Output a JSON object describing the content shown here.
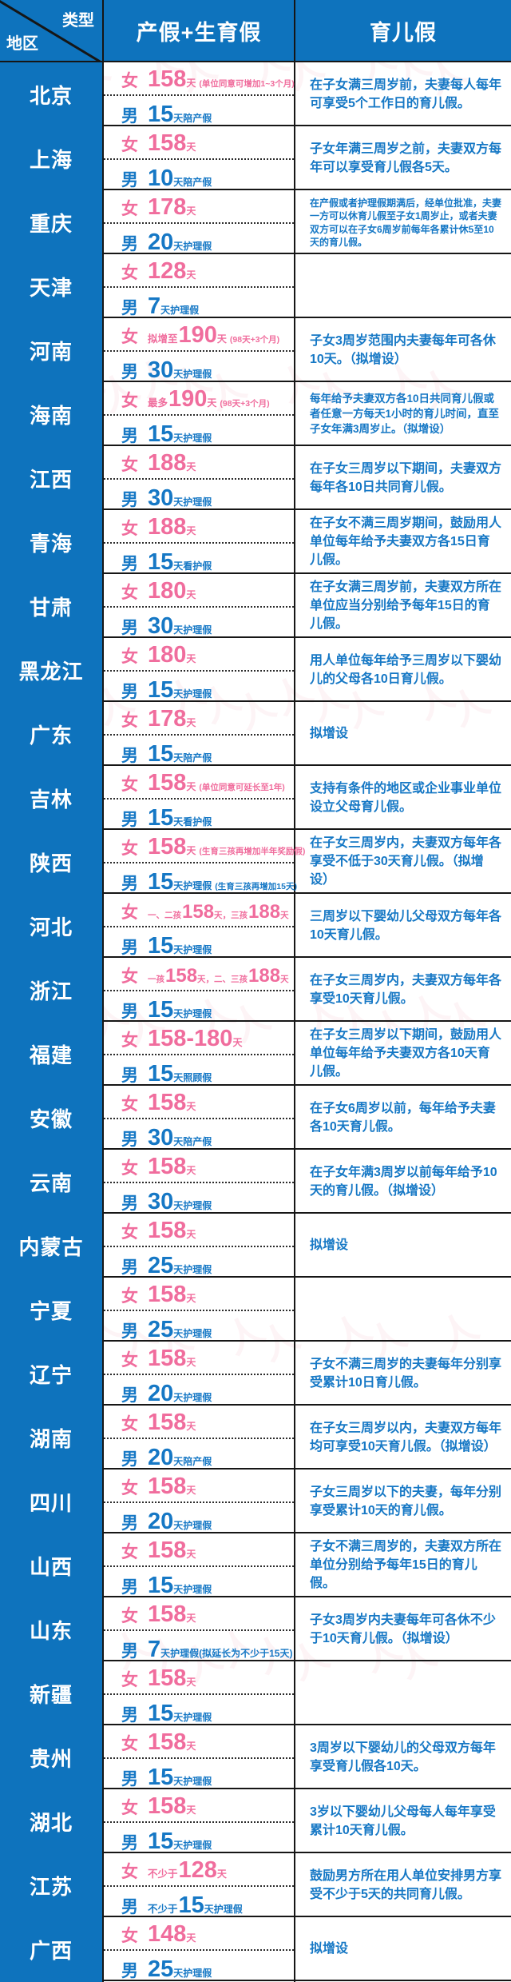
{
  "header": {
    "corner_top": "类型",
    "corner_bottom": "地区",
    "col_maternity": "产假+生育假",
    "col_childcare": "育儿假"
  },
  "colors": {
    "header_blue": "#0e73bd",
    "female_pink": "#f06d9d",
    "male_blue": "#1678c5",
    "border_black": "#161616"
  },
  "watermark": {
    "glyph": "人"
  },
  "rows": [
    {
      "region": "北京",
      "female": {
        "label": "女",
        "parts": [
          [
            "big",
            "158"
          ],
          [
            "sm",
            "天"
          ],
          [
            "note",
            "(单位同意可增加1~3个月)"
          ]
        ]
      },
      "male": {
        "label": "男",
        "parts": [
          [
            "big",
            "15"
          ],
          [
            "sm",
            "天陪产假"
          ]
        ]
      },
      "care": "在子女满三周岁前，夫妻每人每年可享受5个工作日的育儿假。"
    },
    {
      "region": "上海",
      "female": {
        "label": "女",
        "parts": [
          [
            "big",
            "158"
          ],
          [
            "sm",
            "天"
          ]
        ]
      },
      "male": {
        "label": "男",
        "parts": [
          [
            "big",
            "10"
          ],
          [
            "sm",
            "天陪产假"
          ]
        ]
      },
      "care": "子女年满三周岁之前，夫妻双方每年可以享受育儿假各5天。"
    },
    {
      "region": "重庆",
      "female": {
        "label": "女",
        "parts": [
          [
            "big",
            "178"
          ],
          [
            "sm",
            "天"
          ]
        ]
      },
      "male": {
        "label": "男",
        "parts": [
          [
            "big",
            "20"
          ],
          [
            "sm",
            "天护理假"
          ]
        ]
      },
      "care": "在产假或者护理假期满后，经单位批准，夫妻一方可以休育儿假至子女1周岁止，或者夫妻双方可以在子女6周岁前每年各累计休5至10天的育儿假。"
    },
    {
      "region": "天津",
      "female": {
        "label": "女",
        "parts": [
          [
            "big",
            "128"
          ],
          [
            "sm",
            "天"
          ]
        ]
      },
      "male": {
        "label": "男",
        "parts": [
          [
            "big",
            "7"
          ],
          [
            "sm",
            "天护理假"
          ]
        ]
      },
      "care": ""
    },
    {
      "region": "河南",
      "female": {
        "label": "女",
        "parts": [
          [
            "pre",
            "拟增至"
          ],
          [
            "big",
            "190"
          ],
          [
            "sm",
            "天"
          ],
          [
            "note",
            "(98天+3个月)"
          ]
        ]
      },
      "male": {
        "label": "男",
        "parts": [
          [
            "big",
            "30"
          ],
          [
            "sm",
            "天护理假"
          ]
        ]
      },
      "care": "子女3周岁范围内夫妻每年可各休10天。（拟增设）"
    },
    {
      "region": "海南",
      "female": {
        "label": "女",
        "parts": [
          [
            "pre",
            "最多"
          ],
          [
            "big",
            "190"
          ],
          [
            "sm",
            "天"
          ],
          [
            "note",
            "(98天+3个月)"
          ]
        ]
      },
      "male": {
        "label": "男",
        "parts": [
          [
            "big",
            "15"
          ],
          [
            "sm",
            "天护理假"
          ]
        ]
      },
      "care": "每年给予夫妻双方各10日共同育儿假或者任意一方每天1小时的育儿时间，直至子女年满3周岁止。（拟增设）"
    },
    {
      "region": "江西",
      "female": {
        "label": "女",
        "parts": [
          [
            "big",
            "188"
          ],
          [
            "sm",
            "天"
          ]
        ]
      },
      "male": {
        "label": "男",
        "parts": [
          [
            "big",
            "30"
          ],
          [
            "sm",
            "天护理假"
          ]
        ]
      },
      "care": "在子女三周岁以下期间，夫妻双方每年各10日共同育儿假。"
    },
    {
      "region": "青海",
      "female": {
        "label": "女",
        "parts": [
          [
            "big",
            "188"
          ],
          [
            "sm",
            "天"
          ]
        ]
      },
      "male": {
        "label": "男",
        "parts": [
          [
            "big",
            "15"
          ],
          [
            "sm",
            "天看护假"
          ]
        ]
      },
      "care": "在子女不满三周岁期间，鼓励用人单位每年给予夫妻双方各15日育儿假。"
    },
    {
      "region": "甘肃",
      "female": {
        "label": "女",
        "parts": [
          [
            "big",
            "180"
          ],
          [
            "sm",
            "天"
          ]
        ]
      },
      "male": {
        "label": "男",
        "parts": [
          [
            "big",
            "30"
          ],
          [
            "sm",
            "天护理假"
          ]
        ]
      },
      "care": "在子女满三周岁前，夫妻双方所在单位应当分别给予每年15日的育儿假。"
    },
    {
      "region": "黑龙江",
      "female": {
        "label": "女",
        "parts": [
          [
            "big",
            "180"
          ],
          [
            "sm",
            "天"
          ]
        ]
      },
      "male": {
        "label": "男",
        "parts": [
          [
            "big",
            "15"
          ],
          [
            "sm",
            "天护理假"
          ]
        ]
      },
      "care": "用人单位每年给予三周岁以下婴幼儿的父母各10日育儿假。"
    },
    {
      "region": "广东",
      "female": {
        "label": "女",
        "parts": [
          [
            "big",
            "178"
          ],
          [
            "sm",
            "天"
          ]
        ]
      },
      "male": {
        "label": "男",
        "parts": [
          [
            "big",
            "15"
          ],
          [
            "sm",
            "天陪产假"
          ]
        ]
      },
      "care": "拟增设"
    },
    {
      "region": "吉林",
      "female": {
        "label": "女",
        "parts": [
          [
            "big",
            "158"
          ],
          [
            "sm",
            "天"
          ],
          [
            "note",
            "(单位同意可延长至1年)"
          ]
        ]
      },
      "male": {
        "label": "男",
        "parts": [
          [
            "big",
            "15"
          ],
          [
            "sm",
            "天看护假"
          ]
        ]
      },
      "care": "支持有条件的地区或企业事业单位设立父母育儿假。"
    },
    {
      "region": "陕西",
      "female": {
        "label": "女",
        "parts": [
          [
            "big",
            "158"
          ],
          [
            "sm",
            "天"
          ],
          [
            "note",
            "(生育三孩再增加半年奖励假)"
          ]
        ]
      },
      "male": {
        "label": "男",
        "parts": [
          [
            "big",
            "15"
          ],
          [
            "sm",
            "天护理假"
          ],
          [
            "note",
            "(生育三孩再增加15天)"
          ]
        ]
      },
      "care": "在子女三周岁内，夫妻双方每年各享受不低于30天育儿假。（拟增设）"
    },
    {
      "region": "河北",
      "female": {
        "label": "女",
        "parts": [
          [
            "pre",
            "一、二孩"
          ],
          [
            "big",
            "158"
          ],
          [
            "sm",
            "天，"
          ],
          [
            "pre",
            "三孩"
          ],
          [
            "big",
            "188"
          ],
          [
            "sm",
            "天"
          ]
        ]
      },
      "male": {
        "label": "男",
        "parts": [
          [
            "big",
            "15"
          ],
          [
            "sm",
            "天护理假"
          ]
        ]
      },
      "care": "三周岁以下婴幼儿父母双方每年各10天育儿假。"
    },
    {
      "region": "浙江",
      "female": {
        "label": "女",
        "parts": [
          [
            "pre",
            "一孩"
          ],
          [
            "big",
            "158"
          ],
          [
            "sm",
            "天，"
          ],
          [
            "pre",
            "二、三孩"
          ],
          [
            "big",
            "188"
          ],
          [
            "sm",
            "天"
          ]
        ]
      },
      "male": {
        "label": "男",
        "parts": [
          [
            "big",
            "15"
          ],
          [
            "sm",
            "天护理假"
          ]
        ]
      },
      "care": "在子女三周岁内，夫妻双方每年各享受10天育儿假。"
    },
    {
      "region": "福建",
      "female": {
        "label": "女",
        "parts": [
          [
            "big",
            "158-180"
          ],
          [
            "sm",
            "天"
          ]
        ]
      },
      "male": {
        "label": "男",
        "parts": [
          [
            "big",
            "15"
          ],
          [
            "sm",
            "天照顾假"
          ]
        ]
      },
      "care": "在子女三周岁以下期间，鼓励用人单位每年给予夫妻双方各10天育儿假。"
    },
    {
      "region": "安徽",
      "female": {
        "label": "女",
        "parts": [
          [
            "big",
            "158"
          ],
          [
            "sm",
            "天"
          ]
        ]
      },
      "male": {
        "label": "男",
        "parts": [
          [
            "big",
            "30"
          ],
          [
            "sm",
            "天陪产假"
          ]
        ]
      },
      "care": "在子女6周岁以前，每年给予夫妻各10天育儿假。"
    },
    {
      "region": "云南",
      "female": {
        "label": "女",
        "parts": [
          [
            "big",
            "158"
          ],
          [
            "sm",
            "天"
          ]
        ]
      },
      "male": {
        "label": "男",
        "parts": [
          [
            "big",
            "30"
          ],
          [
            "sm",
            "天护理假"
          ]
        ]
      },
      "care": "在子女年满3周岁以前每年给予10天的育儿假。（拟增设）"
    },
    {
      "region": "内蒙古",
      "female": {
        "label": "女",
        "parts": [
          [
            "big",
            "158"
          ],
          [
            "sm",
            "天"
          ]
        ]
      },
      "male": {
        "label": "男",
        "parts": [
          [
            "big",
            "25"
          ],
          [
            "sm",
            "天护理假"
          ]
        ]
      },
      "care": "拟增设"
    },
    {
      "region": "宁夏",
      "female": {
        "label": "女",
        "parts": [
          [
            "big",
            "158"
          ],
          [
            "sm",
            "天"
          ]
        ]
      },
      "male": {
        "label": "男",
        "parts": [
          [
            "big",
            "25"
          ],
          [
            "sm",
            "天护理假"
          ]
        ]
      },
      "care": ""
    },
    {
      "region": "辽宁",
      "female": {
        "label": "女",
        "parts": [
          [
            "big",
            "158"
          ],
          [
            "sm",
            "天"
          ]
        ]
      },
      "male": {
        "label": "男",
        "parts": [
          [
            "big",
            "20"
          ],
          [
            "sm",
            "天护理假"
          ]
        ]
      },
      "care": "子女不满三周岁的夫妻每年分别享受累计10日育儿假。"
    },
    {
      "region": "湖南",
      "female": {
        "label": "女",
        "parts": [
          [
            "big",
            "158"
          ],
          [
            "sm",
            "天"
          ]
        ]
      },
      "male": {
        "label": "男",
        "parts": [
          [
            "big",
            "20"
          ],
          [
            "sm",
            "天陪产假"
          ]
        ]
      },
      "care": "在子女三周岁以内，夫妻双方每年均可享受10天育儿假。（拟增设）"
    },
    {
      "region": "四川",
      "female": {
        "label": "女",
        "parts": [
          [
            "big",
            "158"
          ],
          [
            "sm",
            "天"
          ]
        ]
      },
      "male": {
        "label": "男",
        "parts": [
          [
            "big",
            "20"
          ],
          [
            "sm",
            "天护理假"
          ]
        ]
      },
      "care": "子女三周岁以下的夫妻，每年分别享受累计10天的育儿假。"
    },
    {
      "region": "山西",
      "female": {
        "label": "女",
        "parts": [
          [
            "big",
            "158"
          ],
          [
            "sm",
            "天"
          ]
        ]
      },
      "male": {
        "label": "男",
        "parts": [
          [
            "big",
            "15"
          ],
          [
            "sm",
            "天护理假"
          ]
        ]
      },
      "care": "子女不满三周岁的，夫妻双方所在单位分别给予每年15日的育儿假。"
    },
    {
      "region": "山东",
      "female": {
        "label": "女",
        "parts": [
          [
            "big",
            "158"
          ],
          [
            "sm",
            "天"
          ]
        ]
      },
      "male": {
        "label": "男",
        "parts": [
          [
            "big",
            "7"
          ],
          [
            "sm",
            "天护理假(拟延长为不少于15天)"
          ]
        ]
      },
      "care": "子女3周岁内夫妻每年可各休不少于10天育儿假。（拟增设）"
    },
    {
      "region": "新疆",
      "female": {
        "label": "女",
        "parts": [
          [
            "big",
            "158"
          ],
          [
            "sm",
            "天"
          ]
        ]
      },
      "male": {
        "label": "男",
        "parts": [
          [
            "big",
            "15"
          ],
          [
            "sm",
            "天护理假"
          ]
        ]
      },
      "care": ""
    },
    {
      "region": "贵州",
      "female": {
        "label": "女",
        "parts": [
          [
            "big",
            "158"
          ],
          [
            "sm",
            "天"
          ]
        ]
      },
      "male": {
        "label": "男",
        "parts": [
          [
            "big",
            "15"
          ],
          [
            "sm",
            "天护理假"
          ]
        ]
      },
      "care": "3周岁以下婴幼儿的父母双方每年享受育儿假各10天。"
    },
    {
      "region": "湖北",
      "female": {
        "label": "女",
        "parts": [
          [
            "big",
            "158"
          ],
          [
            "sm",
            "天"
          ]
        ]
      },
      "male": {
        "label": "男",
        "parts": [
          [
            "big",
            "15"
          ],
          [
            "sm",
            "天护理假"
          ]
        ]
      },
      "care": "3岁以下婴幼儿父母每人每年享受累计10天育儿假。"
    },
    {
      "region": "江苏",
      "female": {
        "label": "女",
        "parts": [
          [
            "pre",
            "不少于"
          ],
          [
            "big",
            "128"
          ],
          [
            "sm",
            "天"
          ]
        ]
      },
      "male": {
        "label": "男",
        "parts": [
          [
            "pre",
            "不少于"
          ],
          [
            "big",
            "15"
          ],
          [
            "sm",
            "天护理假"
          ]
        ]
      },
      "care": "鼓励男方所在用人单位安排男方享受不少于5天的共同育儿假。"
    },
    {
      "region": "广西",
      "female": {
        "label": "女",
        "parts": [
          [
            "big",
            "148"
          ],
          [
            "sm",
            "天"
          ]
        ]
      },
      "male": {
        "label": "男",
        "parts": [
          [
            "big",
            "25"
          ],
          [
            "sm",
            "天护理假"
          ]
        ]
      },
      "care": "拟增设"
    }
  ]
}
